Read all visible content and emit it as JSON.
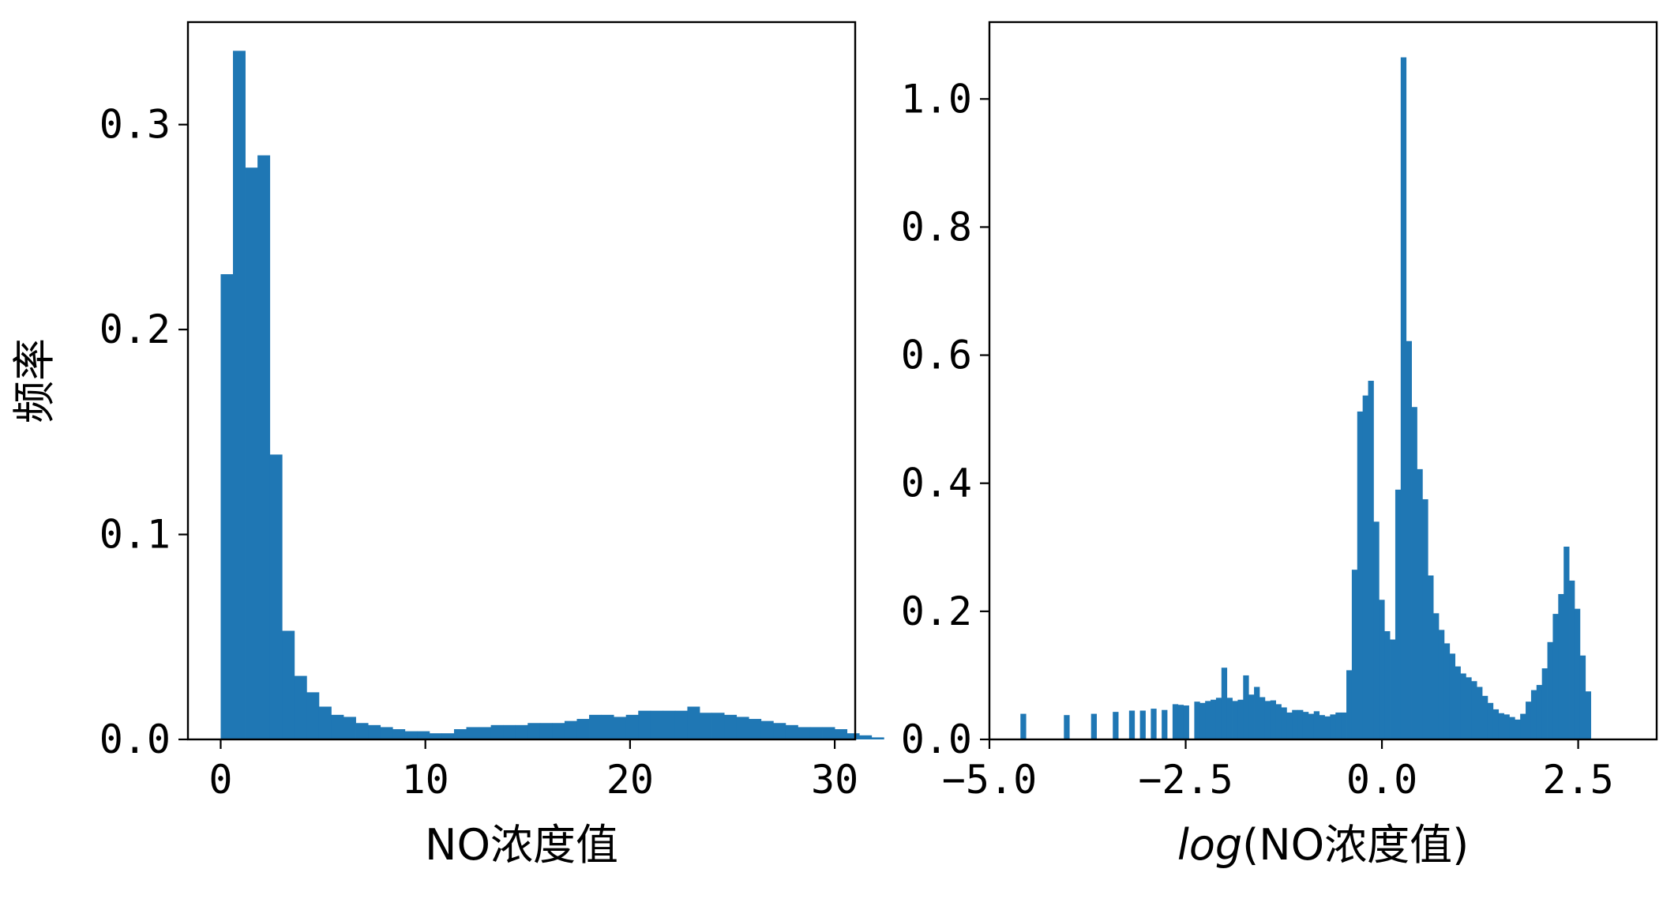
{
  "chart_data": [
    {
      "type": "bar",
      "bar_style": "histogram",
      "color": "#1f77b4",
      "xlabel": "NO浓度值",
      "ylabel": "频率",
      "xlim": [
        -1.6,
        31
      ],
      "ylim": [
        0,
        0.35
      ],
      "xticks": [
        0,
        10,
        20,
        30
      ],
      "xtick_labels": [
        "0",
        "10",
        "20",
        "30"
      ],
      "yticks": [
        0.0,
        0.1,
        0.2,
        0.3
      ],
      "ytick_labels": [
        "0.0",
        "0.1",
        "0.2",
        "0.3"
      ],
      "bin_width": 0.6,
      "bins_start": 0,
      "values": [
        0.227,
        0.336,
        0.279,
        0.285,
        0.139,
        0.053,
        0.031,
        0.023,
        0.016,
        0.012,
        0.011,
        0.008,
        0.007,
        0.006,
        0.005,
        0.004,
        0.004,
        0.003,
        0.003,
        0.005,
        0.006,
        0.006,
        0.007,
        0.007,
        0.007,
        0.008,
        0.008,
        0.008,
        0.009,
        0.01,
        0.012,
        0.012,
        0.011,
        0.012,
        0.014,
        0.014,
        0.014,
        0.014,
        0.016,
        0.013,
        0.013,
        0.012,
        0.011,
        0.01,
        0.009,
        0.008,
        0.007,
        0.006,
        0.006,
        0.006,
        0.005,
        0.003,
        0.002,
        0.001,
        0.0
      ]
    },
    {
      "type": "bar",
      "bar_style": "histogram",
      "color": "#1f77b4",
      "xlabel_prefix": "log",
      "xlabel_main": "(NO浓度值)",
      "ylabel": "",
      "xlim": [
        -5.0,
        3.5
      ],
      "ylim": [
        0,
        1.12
      ],
      "xticks": [
        -5.0,
        -2.5,
        0.0,
        2.5
      ],
      "xtick_labels": [
        "−5.0",
        "−2.5",
        "0.0",
        "2.5"
      ],
      "yticks": [
        0.0,
        0.2,
        0.4,
        0.6,
        0.8,
        1.0
      ],
      "ytick_labels": [
        "0.0",
        "0.2",
        "0.4",
        "0.6",
        "0.8",
        "1.0"
      ],
      "bin_width": 0.0692,
      "bins_start": -4.605,
      "values": [
        0.04,
        0,
        0,
        0,
        0,
        0,
        0,
        0,
        0.038,
        0,
        0,
        0,
        0,
        0.04,
        0,
        0,
        0,
        0.043,
        0,
        0,
        0.045,
        0,
        0.045,
        0,
        0.048,
        0,
        0.046,
        0,
        0.055,
        0.054,
        0.053,
        0,
        0.059,
        0.057,
        0.06,
        0.062,
        0.065,
        0.112,
        0.065,
        0.06,
        0.062,
        0.1,
        0.07,
        0.082,
        0.066,
        0.06,
        0.061,
        0.055,
        0.05,
        0.042,
        0.046,
        0.046,
        0.043,
        0.04,
        0.044,
        0.038,
        0.036,
        0.039,
        0.042,
        0.042,
        0.108,
        0.265,
        0.512,
        0.537,
        0.56,
        0.34,
        0.218,
        0.169,
        0.156,
        0.39,
        1.065,
        0.622,
        0.519,
        0.422,
        0.375,
        0.256,
        0.197,
        0.171,
        0.15,
        0.134,
        0.114,
        0.103,
        0.097,
        0.091,
        0.082,
        0.068,
        0.057,
        0.047,
        0.041,
        0.039,
        0.035,
        0.031,
        0.04,
        0.059,
        0.077,
        0.085,
        0.111,
        0.152,
        0.196,
        0.227,
        0.301,
        0.248,
        0.204,
        0.131,
        0.075
      ]
    }
  ]
}
